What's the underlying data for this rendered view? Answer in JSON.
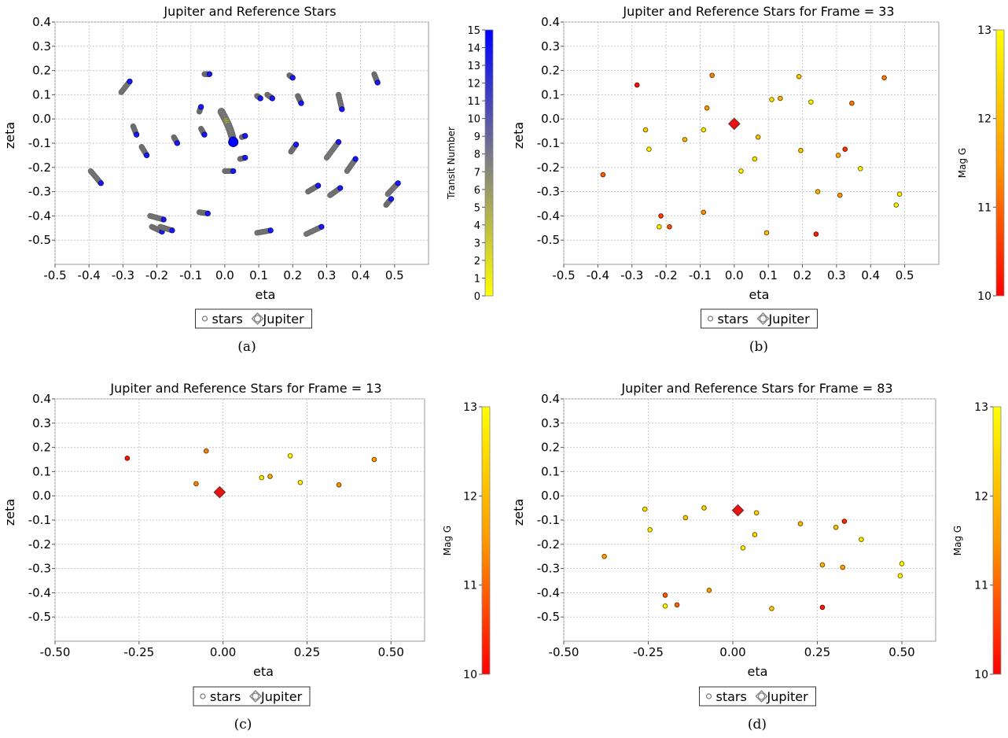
{
  "chart_data": [
    {
      "id": "a",
      "type": "scatter",
      "title": "Jupiter and Reference Stars",
      "xlabel": "eta",
      "ylabel": "zeta",
      "xlim": [
        -0.5,
        0.6
      ],
      "ylim": [
        -0.6,
        0.4
      ],
      "xticks": [
        "-0.5",
        "-0.4",
        "-0.3",
        "-0.2",
        "-0.1",
        "0.0",
        "0.1",
        "0.2",
        "0.3",
        "0.4",
        "0.5"
      ],
      "xtick_values": [
        -0.5,
        -0.4,
        -0.3,
        -0.2,
        -0.1,
        0.0,
        0.1,
        0.2,
        0.3,
        0.4,
        0.5
      ],
      "yticks": [
        "0.4",
        "0.3",
        "0.2",
        "0.1",
        "0.0",
        "-0.1",
        "-0.2",
        "-0.3",
        "-0.4",
        "-0.5"
      ],
      "ytick_values": [
        0.4,
        0.3,
        0.2,
        0.1,
        0.0,
        -0.1,
        -0.2,
        -0.3,
        -0.4,
        -0.5
      ],
      "grid": true,
      "legend": {
        "placement": "bottom-center",
        "entries": [
          "stars",
          "Jupiter"
        ]
      },
      "colorbar": {
        "label": "Transit Number",
        "range": [
          0,
          15
        ],
        "ticks": [
          "0",
          "1",
          "2",
          "3",
          "4",
          "5",
          "6",
          "7",
          "8",
          "9",
          "10",
          "11",
          "12",
          "13",
          "14",
          "15"
        ],
        "colors": [
          "#ffff00",
          "#808080",
          "#0000ff"
        ]
      },
      "caption": "(a)",
      "tracks": [
        {
          "from": [
            -0.305,
            0.11
          ],
          "to": [
            -0.28,
            0.155
          ]
        },
        {
          "from": [
            -0.27,
            -0.03
          ],
          "to": [
            -0.26,
            -0.065
          ]
        },
        {
          "from": [
            -0.245,
            -0.115
          ],
          "to": [
            -0.23,
            -0.15
          ]
        },
        {
          "from": [
            -0.395,
            -0.215
          ],
          "to": [
            -0.365,
            -0.265
          ]
        },
        {
          "from": [
            -0.06,
            0.185
          ],
          "to": [
            -0.045,
            0.185
          ]
        },
        {
          "from": [
            -0.075,
            0.03
          ],
          "to": [
            -0.07,
            0.05
          ]
        },
        {
          "from": [
            -0.07,
            -0.04
          ],
          "to": [
            -0.06,
            -0.065
          ]
        },
        {
          "from": [
            -0.15,
            -0.075
          ],
          "to": [
            -0.14,
            -0.1
          ]
        },
        {
          "from": [
            0.05,
            -0.075
          ],
          "to": [
            0.06,
            -0.07
          ]
        },
        {
          "from": [
            0.045,
            -0.165
          ],
          "to": [
            0.06,
            -0.16
          ]
        },
        {
          "from": [
            0.0,
            -0.215
          ],
          "to": [
            0.025,
            -0.215
          ]
        },
        {
          "from": [
            0.095,
            0.095
          ],
          "to": [
            0.105,
            0.085
          ]
        },
        {
          "from": [
            0.125,
            0.1
          ],
          "to": [
            0.14,
            0.085
          ]
        },
        {
          "from": [
            0.19,
            0.18
          ],
          "to": [
            0.2,
            0.17
          ]
        },
        {
          "from": [
            0.215,
            0.095
          ],
          "to": [
            0.225,
            0.065
          ]
        },
        {
          "from": [
            0.195,
            -0.135
          ],
          "to": [
            0.21,
            -0.105
          ]
        },
        {
          "from": [
            0.335,
            0.1
          ],
          "to": [
            0.345,
            0.04
          ]
        },
        {
          "from": [
            0.3,
            -0.16
          ],
          "to": [
            0.335,
            -0.095
          ]
        },
        {
          "from": [
            0.36,
            -0.215
          ],
          "to": [
            0.385,
            -0.165
          ]
        },
        {
          "from": [
            0.44,
            0.185
          ],
          "to": [
            0.45,
            0.15
          ]
        },
        {
          "from": [
            0.245,
            -0.3
          ],
          "to": [
            0.275,
            -0.275
          ]
        },
        {
          "from": [
            0.31,
            -0.315
          ],
          "to": [
            0.34,
            -0.285
          ]
        },
        {
          "from": [
            0.475,
            -0.355
          ],
          "to": [
            0.49,
            -0.33
          ]
        },
        {
          "from": [
            0.48,
            -0.31
          ],
          "to": [
            0.51,
            -0.265
          ]
        },
        {
          "from": [
            -0.075,
            -0.385
          ],
          "to": [
            -0.05,
            -0.39
          ]
        },
        {
          "from": [
            -0.22,
            -0.4
          ],
          "to": [
            -0.18,
            -0.415
          ]
        },
        {
          "from": [
            -0.215,
            -0.445
          ],
          "to": [
            -0.185,
            -0.465
          ]
        },
        {
          "from": [
            -0.19,
            -0.445
          ],
          "to": [
            -0.155,
            -0.46
          ]
        },
        {
          "from": [
            0.095,
            -0.47
          ],
          "to": [
            0.135,
            -0.46
          ]
        },
        {
          "from": [
            0.24,
            -0.475
          ],
          "to": [
            0.285,
            -0.445
          ]
        }
      ],
      "jupiter_track": {
        "from": [
          -0.01,
          0.03
        ],
        "to": [
          0.025,
          -0.095
        ]
      }
    },
    {
      "id": "b",
      "type": "scatter",
      "title": "Jupiter and Reference Stars for Frame = 33",
      "xlabel": "eta",
      "ylabel": "zeta",
      "xlim": [
        -0.5,
        0.6
      ],
      "ylim": [
        -0.6,
        0.4
      ],
      "xticks": [
        "-0.5",
        "-0.4",
        "-0.3",
        "-0.2",
        "-0.1",
        "0.0",
        "0.1",
        "0.2",
        "0.3",
        "0.4",
        "0.5"
      ],
      "xtick_values": [
        -0.5,
        -0.4,
        -0.3,
        -0.2,
        -0.1,
        0.0,
        0.1,
        0.2,
        0.3,
        0.4,
        0.5
      ],
      "yticks": [
        "0.4",
        "0.3",
        "0.2",
        "0.1",
        "0.0",
        "-0.1",
        "-0.2",
        "-0.3",
        "-0.4",
        "-0.5"
      ],
      "ytick_values": [
        0.4,
        0.3,
        0.2,
        0.1,
        0.0,
        -0.1,
        -0.2,
        -0.3,
        -0.4,
        -0.5
      ],
      "grid": true,
      "legend": {
        "placement": "bottom-center",
        "entries": [
          "stars",
          "Jupiter"
        ]
      },
      "colorbar": {
        "label": "Mag G",
        "range": [
          10,
          13
        ],
        "ticks": [
          "10",
          "11",
          "12",
          "13"
        ],
        "colors": [
          "#ff0000",
          "#ff9900",
          "#ffff00"
        ]
      },
      "caption": "(b)",
      "stars": [
        [
          -0.285,
          0.14,
          10.2
        ],
        [
          -0.065,
          0.18,
          11.3
        ],
        [
          0.19,
          0.175,
          12.2
        ],
        [
          0.44,
          0.17,
          11.2
        ],
        [
          -0.08,
          0.045,
          11.5
        ],
        [
          0.11,
          0.08,
          12.6
        ],
        [
          0.135,
          0.085,
          11.9
        ],
        [
          0.225,
          0.07,
          12.9
        ],
        [
          0.345,
          0.065,
          11.2
        ],
        [
          -0.26,
          -0.045,
          12.3
        ],
        [
          -0.09,
          -0.045,
          12.7
        ],
        [
          0.07,
          -0.075,
          12.1
        ],
        [
          -0.145,
          -0.085,
          11.9
        ],
        [
          -0.25,
          -0.125,
          12.8
        ],
        [
          0.195,
          -0.13,
          12.2
        ],
        [
          0.325,
          -0.125,
          10.5
        ],
        [
          0.305,
          -0.15,
          11.8
        ],
        [
          0.06,
          -0.165,
          12.6
        ],
        [
          0.02,
          -0.215,
          12.8
        ],
        [
          0.37,
          -0.205,
          12.9
        ],
        [
          -0.385,
          -0.23,
          10.9
        ],
        [
          0.245,
          -0.3,
          11.9
        ],
        [
          0.31,
          -0.315,
          11.5
        ],
        [
          0.485,
          -0.31,
          12.8
        ],
        [
          0.475,
          -0.355,
          12.9
        ],
        [
          -0.215,
          -0.4,
          10.6
        ],
        [
          -0.09,
          -0.385,
          11.4
        ],
        [
          -0.22,
          -0.445,
          12.8
        ],
        [
          -0.19,
          -0.445,
          10.8
        ],
        [
          0.095,
          -0.47,
          12.0
        ],
        [
          0.24,
          -0.475,
          10.3
        ]
      ],
      "jupiter": [
        0.0,
        -0.02
      ]
    },
    {
      "id": "c",
      "type": "scatter",
      "title": "Jupiter and Reference Stars for Frame = 13",
      "xlabel": "eta",
      "ylabel": "zeta",
      "xlim": [
        -0.5,
        0.6
      ],
      "ylim": [
        -0.6,
        0.4
      ],
      "xticks": [
        "-0.50",
        "-0.25",
        "0.00",
        "0.25",
        "0.50"
      ],
      "xtick_values": [
        -0.5,
        -0.25,
        0.0,
        0.25,
        0.5
      ],
      "yticks": [
        "0.4",
        "0.3",
        "0.2",
        "0.1",
        "0.0",
        "-0.1",
        "-0.2",
        "-0.3",
        "-0.4",
        "-0.5"
      ],
      "ytick_values": [
        0.4,
        0.3,
        0.2,
        0.1,
        0.0,
        -0.1,
        -0.2,
        -0.3,
        -0.4,
        -0.5
      ],
      "grid": true,
      "legend": {
        "placement": "bottom-center",
        "entries": [
          "stars",
          "Jupiter"
        ]
      },
      "colorbar": {
        "label": "Mag G",
        "range": [
          10,
          13
        ],
        "ticks": [
          "10",
          "11",
          "12",
          "13"
        ],
        "colors": [
          "#ff0000",
          "#ff9900",
          "#ffff00"
        ]
      },
      "caption": "(c)",
      "stars": [
        [
          -0.285,
          0.155,
          10.2
        ],
        [
          -0.05,
          0.185,
          11.3
        ],
        [
          0.2,
          0.165,
          12.9
        ],
        [
          0.45,
          0.15,
          11.6
        ],
        [
          -0.08,
          0.05,
          11.3
        ],
        [
          0.115,
          0.075,
          12.7
        ],
        [
          0.14,
          0.08,
          11.8
        ],
        [
          0.23,
          0.055,
          12.8
        ],
        [
          0.345,
          0.045,
          11.4
        ]
      ],
      "jupiter": [
        -0.01,
        0.015
      ]
    },
    {
      "id": "d",
      "type": "scatter",
      "title": "Jupiter and Reference Stars for Frame = 83",
      "xlabel": "eta",
      "ylabel": "zeta",
      "xlim": [
        -0.5,
        0.6
      ],
      "ylim": [
        -0.6,
        0.4
      ],
      "xticks": [
        "-0.50",
        "-0.25",
        "0.00",
        "0.25",
        "0.50"
      ],
      "xtick_values": [
        -0.5,
        -0.25,
        0.0,
        0.25,
        0.5
      ],
      "yticks": [
        "0.4",
        "0.3",
        "0.2",
        "0.1",
        "0.0",
        "-0.1",
        "-0.2",
        "-0.3",
        "-0.4",
        "-0.5"
      ],
      "ytick_values": [
        0.4,
        0.3,
        0.2,
        0.1,
        0.0,
        -0.1,
        -0.2,
        -0.3,
        -0.4,
        -0.5
      ],
      "grid": true,
      "legend": {
        "placement": "bottom-center",
        "entries": [
          "stars",
          "Jupiter"
        ]
      },
      "colorbar": {
        "label": "Mag G",
        "range": [
          10,
          13
        ],
        "ticks": [
          "10",
          "11",
          "12",
          "13"
        ],
        "colors": [
          "#ff0000",
          "#ff9900",
          "#ffff00"
        ]
      },
      "caption": "(d)",
      "stars": [
        [
          -0.26,
          -0.055,
          12.6
        ],
        [
          -0.085,
          -0.05,
          12.3
        ],
        [
          0.07,
          -0.07,
          12.4
        ],
        [
          -0.14,
          -0.09,
          12.2
        ],
        [
          0.2,
          -0.115,
          12.0
        ],
        [
          0.33,
          -0.105,
          10.4
        ],
        [
          0.305,
          -0.13,
          12.1
        ],
        [
          -0.245,
          -0.14,
          12.8
        ],
        [
          0.065,
          -0.16,
          12.4
        ],
        [
          0.38,
          -0.18,
          12.7
        ],
        [
          0.03,
          -0.215,
          12.8
        ],
        [
          -0.38,
          -0.25,
          11.6
        ],
        [
          0.265,
          -0.285,
          11.9
        ],
        [
          0.325,
          -0.295,
          11.7
        ],
        [
          0.5,
          -0.28,
          12.9
        ],
        [
          0.495,
          -0.33,
          12.9
        ],
        [
          -0.2,
          -0.41,
          10.9
        ],
        [
          -0.07,
          -0.39,
          11.6
        ],
        [
          -0.2,
          -0.455,
          12.9
        ],
        [
          -0.165,
          -0.45,
          11.0
        ],
        [
          0.115,
          -0.465,
          12.2
        ],
        [
          0.265,
          -0.46,
          10.3
        ]
      ],
      "jupiter": [
        0.015,
        -0.06
      ]
    }
  ]
}
